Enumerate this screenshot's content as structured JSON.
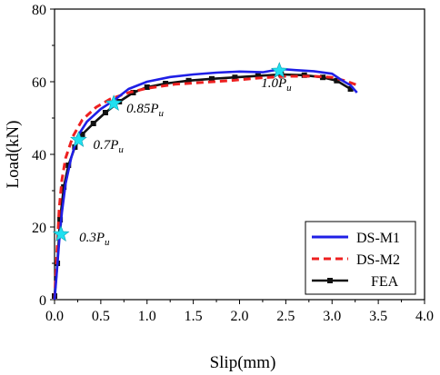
{
  "chart_data": {
    "type": "line",
    "xlabel": "Slip(mm)",
    "ylabel": "Load(kN)",
    "xlim": [
      0.0,
      4.0
    ],
    "ylim": [
      0,
      80
    ],
    "x_ticks": [
      "0.0",
      "0.5",
      "1.0",
      "1.5",
      "2.0",
      "2.5",
      "3.0",
      "3.5",
      "4.0"
    ],
    "y_ticks": [
      "0",
      "20",
      "40",
      "60",
      "80"
    ],
    "grid": false,
    "legend_position": "bottom-right",
    "series": [
      {
        "name": "DS-M1",
        "color": "#1f1fe6",
        "line_style": "solid",
        "marker": "none",
        "x": [
          0.0,
          0.02,
          0.05,
          0.08,
          0.12,
          0.18,
          0.25,
          0.35,
          0.5,
          0.65,
          0.8,
          1.0,
          1.25,
          1.5,
          1.75,
          2.0,
          2.25,
          2.45,
          2.6,
          2.8,
          3.0,
          3.1,
          3.2,
          3.27
        ],
        "y": [
          0,
          6,
          16,
          24,
          32,
          39,
          45,
          49,
          52.5,
          55,
          58,
          60,
          61.3,
          62,
          62.5,
          62.8,
          62.6,
          63.5,
          63.2,
          62.9,
          62.2,
          60.5,
          59,
          57
        ]
      },
      {
        "name": "DS-M2",
        "color": "#ee2020",
        "line_style": "dashed",
        "marker": "none",
        "x": [
          0.0,
          0.02,
          0.05,
          0.08,
          0.12,
          0.2,
          0.3,
          0.45,
          0.6,
          0.8,
          1.0,
          1.3,
          1.6,
          1.9,
          2.2,
          2.5,
          2.8,
          3.0,
          3.15,
          3.28
        ],
        "y": [
          0,
          10,
          25,
          33,
          39,
          45,
          49.5,
          53,
          55.2,
          57,
          58.2,
          59.3,
          59.8,
          60.3,
          61,
          61.5,
          61.5,
          61.2,
          60.2,
          59
        ]
      },
      {
        "name": "FEA",
        "color": "#111111",
        "line_style": "solid",
        "marker": "square",
        "x": [
          0.0,
          0.03,
          0.06,
          0.1,
          0.15,
          0.22,
          0.3,
          0.42,
          0.55,
          0.7,
          0.85,
          1.0,
          1.2,
          1.45,
          1.7,
          1.95,
          2.2,
          2.45,
          2.7,
          2.9,
          3.05,
          3.2
        ],
        "y": [
          1,
          10,
          22,
          31,
          37,
          42,
          45.5,
          48.5,
          51.5,
          54.5,
          57,
          58.5,
          59.5,
          60.3,
          60.8,
          61.2,
          61.6,
          62,
          61.8,
          61.2,
          60.3,
          58
        ]
      }
    ],
    "annotations": [
      {
        "label": "0.3P",
        "sub": "u",
        "x": 0.07,
        "y": 18
      },
      {
        "label": "0.7P",
        "sub": "u",
        "x": 0.26,
        "y": 44
      },
      {
        "label": "0.85P",
        "sub": "u",
        "x": 0.64,
        "y": 54
      },
      {
        "label": "1.0P",
        "sub": "u",
        "x": 2.43,
        "y": 63
      }
    ],
    "star_color": "#20e0f0"
  }
}
